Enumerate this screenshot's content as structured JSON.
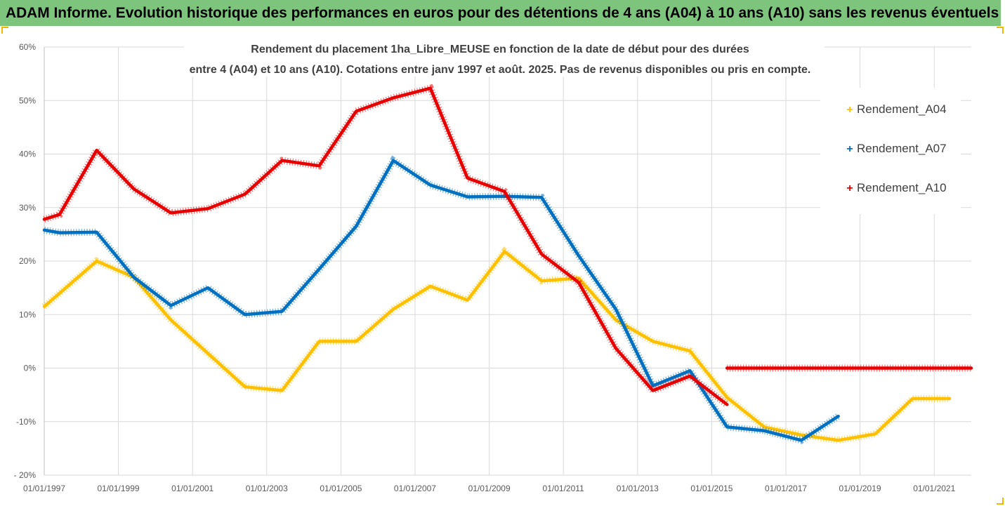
{
  "banner": {
    "title": "ADAM Informe. Evolution historique des performances en euros pour des détentions de 4 ans (A04) à 10 ans (A10) sans les revenus éventuels"
  },
  "chart_data": {
    "type": "line",
    "title": "Rendement du placement 1ha_Libre_MEUSE en fonction de la date de début pour des durées",
    "subtitle": "entre 4 (A04) et 10 ans (A10). Cotations entre janv 1997 et août. 2025. Pas de revenus disponibles ou pris en compte.",
    "xlabel": "",
    "ylabel": "",
    "x_range": [
      "1997-01-01",
      "2022-01-01"
    ],
    "ylim": [
      -20,
      60
    ],
    "y_ticks": [
      -20,
      -10,
      0,
      10,
      20,
      30,
      40,
      50,
      60
    ],
    "y_tick_labels": [
      "- 20%",
      "-10%",
      "0%",
      "10%",
      "20%",
      "30%",
      "40%",
      "50%",
      "60%"
    ],
    "x_tick_labels": [
      "01/01/1997",
      "01/01/1999",
      "01/01/2001",
      "01/01/2003",
      "01/01/2005",
      "01/01/2007",
      "01/01/2009",
      "01/01/2011",
      "01/01/2013",
      "01/01/2015",
      "01/01/2017",
      "01/01/2019",
      "01/01/2021"
    ],
    "x_ticks": [
      "1997-01-01",
      "1999-01-01",
      "2001-01-01",
      "2003-01-01",
      "2005-01-01",
      "2007-01-01",
      "2009-01-01",
      "2011-01-01",
      "2013-01-01",
      "2015-01-01",
      "2017-01-01",
      "2019-01-01",
      "2021-01-01"
    ],
    "grid": true,
    "legend_position": "right",
    "series": [
      {
        "name": "Rendement_A04",
        "color": "#ffc000",
        "points": [
          [
            "1997-01-01",
            11.5
          ],
          [
            "1998-06-01",
            20.0
          ],
          [
            "1999-06-01",
            17.0
          ],
          [
            "2000-06-01",
            9.0
          ],
          [
            "2002-06-01",
            -3.5
          ],
          [
            "2003-06-01",
            -4.2
          ],
          [
            "2004-06-01",
            5.0
          ],
          [
            "2005-06-01",
            5.0
          ],
          [
            "2006-06-01",
            11.0
          ],
          [
            "2007-06-01",
            15.3
          ],
          [
            "2008-06-01",
            12.7
          ],
          [
            "2009-06-01",
            21.8
          ],
          [
            "2010-06-01",
            16.3
          ],
          [
            "2011-06-01",
            16.8
          ],
          [
            "2012-06-01",
            9.0
          ],
          [
            "2013-06-01",
            5.0
          ],
          [
            "2014-06-01",
            3.2
          ],
          [
            "2015-06-01",
            -5.5
          ],
          [
            "2016-06-01",
            -11.0
          ],
          [
            "2017-06-01",
            -12.5
          ],
          [
            "2018-06-01",
            -13.5
          ],
          [
            "2019-06-01",
            -12.3
          ],
          [
            "2020-06-01",
            -5.7
          ],
          [
            "2021-06-01",
            -5.7
          ]
        ]
      },
      {
        "name": "Rendement_A07",
        "color": "#0070c0",
        "points": [
          [
            "1997-01-01",
            25.8
          ],
          [
            "1997-06-01",
            25.3
          ],
          [
            "1998-06-01",
            25.4
          ],
          [
            "1999-06-01",
            17.0
          ],
          [
            "2000-06-01",
            11.7
          ],
          [
            "2001-06-01",
            15.0
          ],
          [
            "2002-06-01",
            10.0
          ],
          [
            "2003-06-01",
            10.6
          ],
          [
            "2004-06-01",
            18.5
          ],
          [
            "2005-06-01",
            26.5
          ],
          [
            "2006-06-01",
            38.8
          ],
          [
            "2007-06-01",
            34.2
          ],
          [
            "2008-06-01",
            32.0
          ],
          [
            "2009-06-01",
            32.1
          ],
          [
            "2010-06-01",
            31.9
          ],
          [
            "2011-06-01",
            21.0
          ],
          [
            "2012-06-01",
            11.0
          ],
          [
            "2013-06-01",
            -3.3
          ],
          [
            "2014-06-01",
            -0.5
          ],
          [
            "2015-06-01",
            -11.0
          ],
          [
            "2016-06-01",
            -11.7
          ],
          [
            "2017-06-01",
            -13.5
          ],
          [
            "2018-06-01",
            -9.0
          ]
        ]
      },
      {
        "name": "Rendement_A10",
        "color": "#e60000",
        "points": [
          [
            "1997-01-01",
            27.8
          ],
          [
            "1997-06-01",
            28.7
          ],
          [
            "1998-06-01",
            40.7
          ],
          [
            "1999-06-01",
            33.5
          ],
          [
            "2000-06-01",
            29.0
          ],
          [
            "2001-06-01",
            29.8
          ],
          [
            "2002-06-01",
            32.5
          ],
          [
            "2003-06-01",
            38.8
          ],
          [
            "2004-06-01",
            37.8
          ],
          [
            "2005-06-01",
            48.0
          ],
          [
            "2006-06-01",
            50.5
          ],
          [
            "2007-06-01",
            52.3
          ],
          [
            "2008-06-01",
            35.5
          ],
          [
            "2009-06-01",
            33.0
          ],
          [
            "2010-06-01",
            21.3
          ],
          [
            "2011-06-01",
            16.0
          ],
          [
            "2012-06-01",
            3.7
          ],
          [
            "2013-06-01",
            -4.2
          ],
          [
            "2014-06-01",
            -1.5
          ],
          [
            "2015-06-01",
            -6.8
          ],
          null,
          [
            "2015-06-01",
            0.0
          ],
          [
            "2022-01-01",
            0.0
          ]
        ]
      }
    ]
  }
}
